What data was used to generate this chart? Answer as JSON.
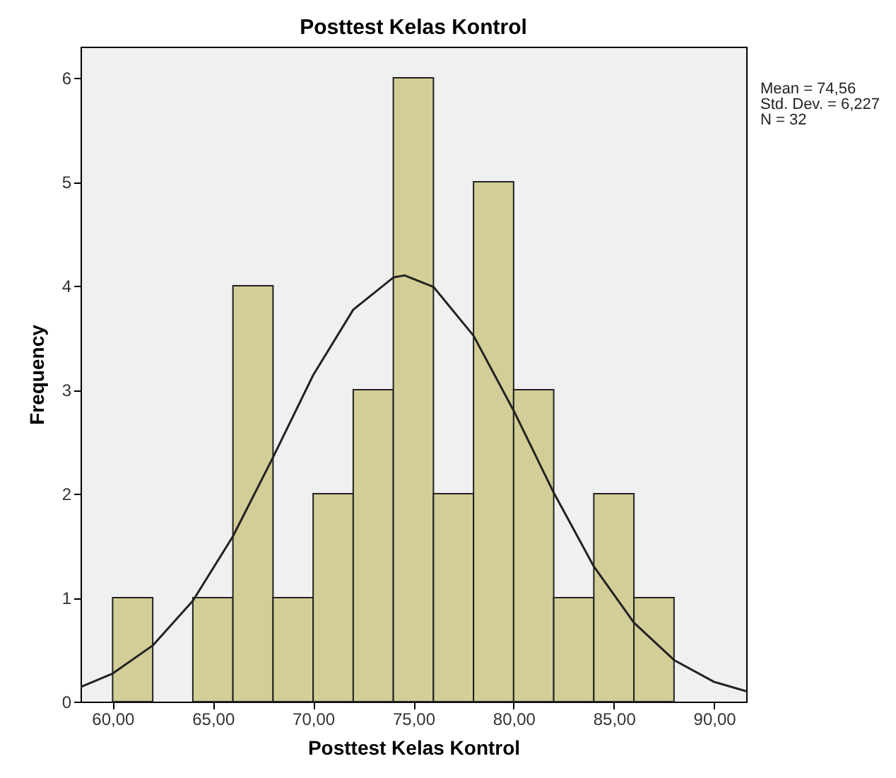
{
  "chart_data": {
    "type": "histogram",
    "title": "Posttest Kelas Kontrol",
    "xlabel": "Posttest Kelas Kontrol",
    "ylabel": "Frequency",
    "bins": [
      60,
      62,
      64,
      66,
      68,
      70,
      72,
      74,
      76,
      78,
      80,
      82,
      84,
      86,
      88
    ],
    "values": [
      1,
      0,
      1,
      4,
      1,
      2,
      3,
      6,
      2,
      5,
      3,
      1,
      2,
      1
    ],
    "color": "#d3ce97",
    "series": [
      {
        "type": "line",
        "color": "#222222",
        "x": [
          58.4,
          60,
          62,
          64,
          66,
          68,
          70,
          72,
          74,
          74.56,
          76,
          78,
          80,
          82,
          84,
          86,
          88,
          90,
          91.6
        ],
        "values": [
          0.14,
          0.27,
          0.54,
          0.97,
          1.59,
          2.35,
          3.14,
          3.77,
          4.08,
          4.1,
          3.99,
          3.52,
          2.8,
          2.01,
          1.3,
          0.76,
          0.4,
          0.19,
          0.1
        ]
      }
    ],
    "xlim": [
      58.4,
      91.6
    ],
    "ylim": [
      0,
      6.3
    ],
    "xticks": [
      {
        "value": 60,
        "label": "60,00"
      },
      {
        "value": 65,
        "label": "65,00"
      },
      {
        "value": 70,
        "label": "70,00"
      },
      {
        "value": 75,
        "label": "75,00"
      },
      {
        "value": 80,
        "label": "80,00"
      },
      {
        "value": 85,
        "label": "85,00"
      },
      {
        "value": 90,
        "label": "90,00"
      }
    ],
    "yticks": [
      0,
      1,
      2,
      3,
      4,
      5,
      6
    ],
    "grid": false,
    "annotations": [
      "Mean = 74,56",
      "Std. Dev. = 6,227",
      "N = 32"
    ]
  }
}
